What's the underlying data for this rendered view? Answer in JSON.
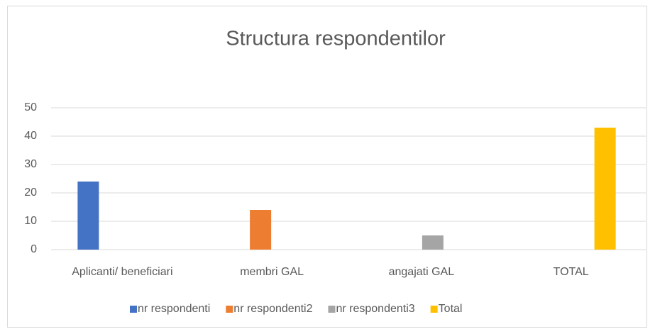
{
  "chart_data": {
    "type": "bar",
    "title": "Structura respondentilor",
    "categories": [
      "Aplicanti/ beneficiari",
      "membri GAL",
      "angajati GAL",
      "TOTAL"
    ],
    "series": [
      {
        "name": "nr respondenti",
        "color": "#4472c4",
        "values": [
          24,
          null,
          null,
          null
        ]
      },
      {
        "name": "nr respondenti2",
        "color": "#ed7d31",
        "values": [
          null,
          14,
          null,
          null
        ]
      },
      {
        "name": "nr respondenti3",
        "color": "#a5a5a5",
        "values": [
          null,
          null,
          5,
          null
        ]
      },
      {
        "name": "Total",
        "color": "#ffc000",
        "values": [
          null,
          null,
          null,
          43
        ]
      }
    ],
    "ylim": [
      0,
      50
    ],
    "yticks": [
      0,
      10,
      20,
      30,
      40,
      50
    ],
    "grid": true,
    "legend": "bottom"
  }
}
